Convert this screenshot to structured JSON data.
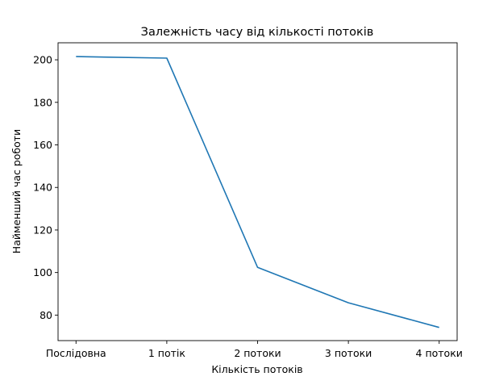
{
  "chart_data": {
    "type": "line",
    "title": "Залежність часу від кількості потоків",
    "xlabel": "Кількість потоків",
    "ylabel": "Найменший час роботи",
    "categories": [
      "Послідовна",
      "1 потік",
      "2 потоки",
      "3 потоки",
      "4 потоки"
    ],
    "values": [
      201.5,
      200.8,
      102.4,
      85.8,
      74.2
    ],
    "ylim": [
      68,
      208
    ],
    "yticks": [
      80,
      100,
      120,
      140,
      160,
      180,
      200
    ],
    "grid": false,
    "line_color": "#1f77b4"
  }
}
